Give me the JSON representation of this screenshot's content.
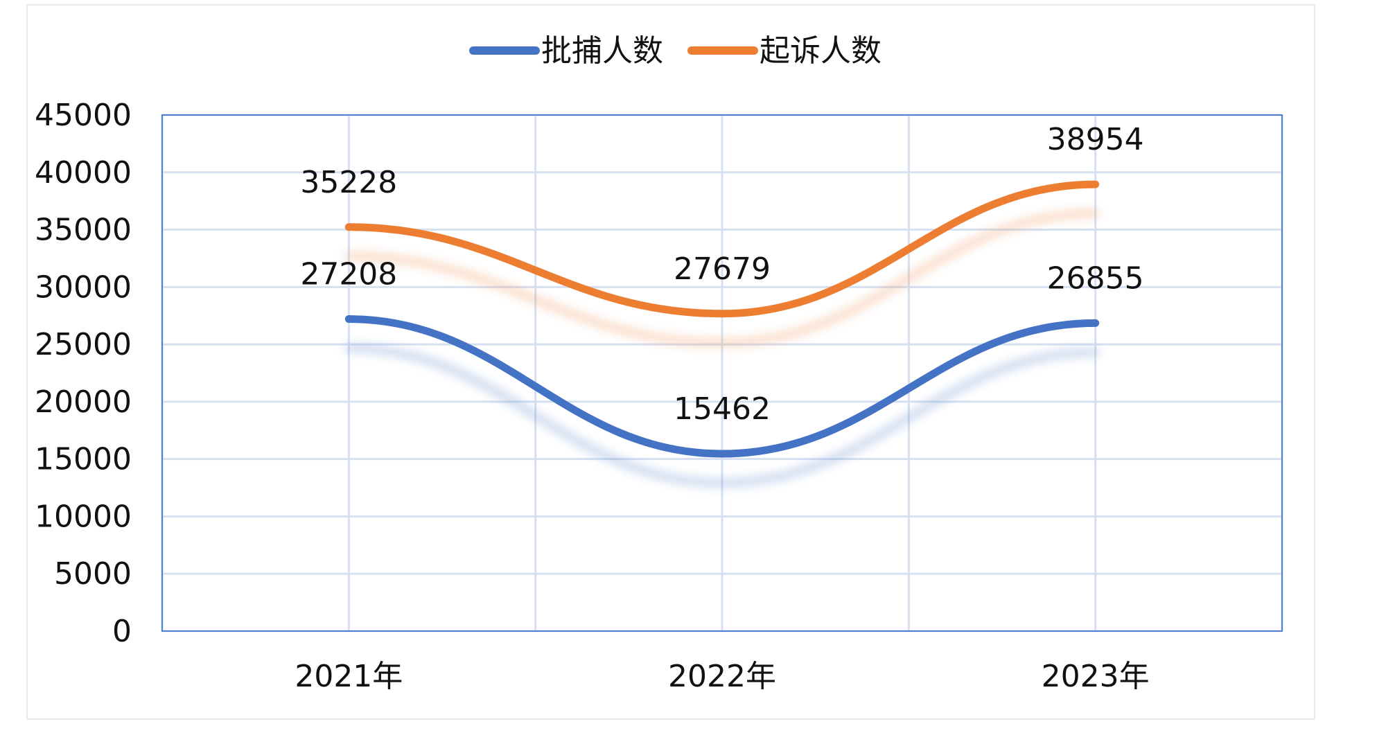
{
  "chart_data": {
    "type": "line",
    "categories": [
      "2021年",
      "2022年",
      "2023年"
    ],
    "series": [
      {
        "name": "批捕人数",
        "values": [
          27208,
          15462,
          26855
        ],
        "color": "#4472C4"
      },
      {
        "name": "起诉人数",
        "values": [
          35228,
          27679,
          38954
        ],
        "color": "#ED7D31"
      }
    ],
    "y_ticks": [
      "0",
      "5000",
      "10000",
      "15000",
      "20000",
      "25000",
      "30000",
      "35000",
      "40000",
      "45000"
    ],
    "ylim": [
      0,
      45000
    ],
    "grid": true,
    "legend_position": "top",
    "data_labels": true,
    "smooth": true,
    "title": "",
    "xlabel": "",
    "ylabel": ""
  }
}
